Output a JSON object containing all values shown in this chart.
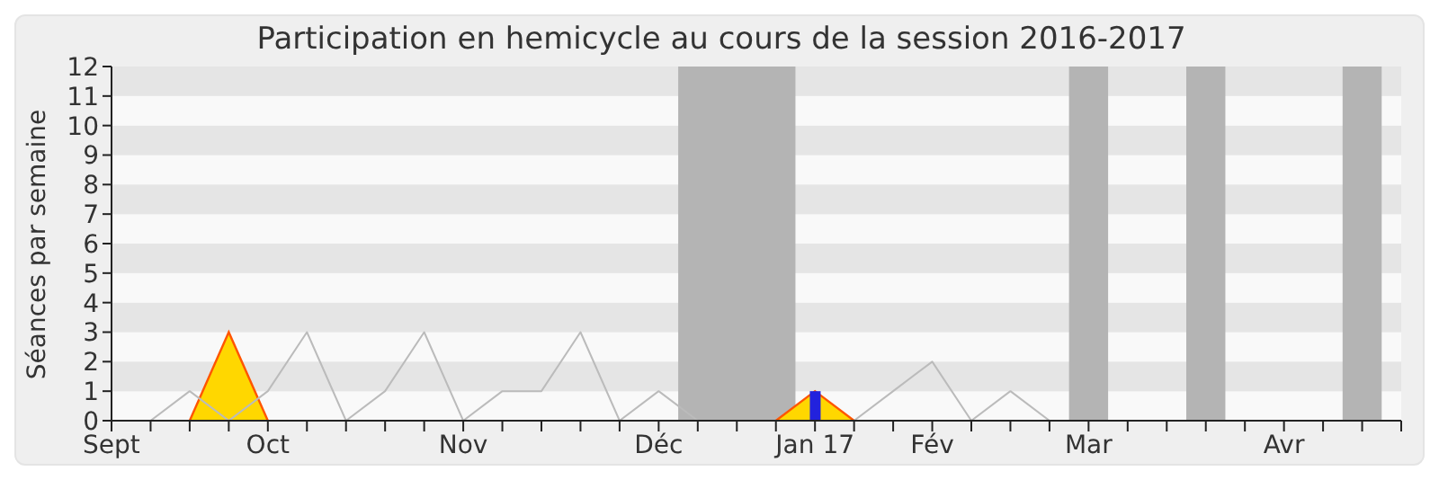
{
  "chart_data": {
    "type": "line",
    "title": "Participation en hemicycle au cours de la session 2016-2017",
    "ylabel": "Séances par semaine",
    "categories": [
      "Sept",
      null,
      null,
      null,
      "Oct",
      null,
      null,
      null,
      null,
      "Nov",
      null,
      null,
      null,
      null,
      "Déc",
      null,
      null,
      null,
      "Jan 17",
      null,
      null,
      "Fév",
      null,
      null,
      null,
      "Mar",
      null,
      null,
      null,
      null,
      "Avr",
      null,
      null,
      null
    ],
    "series": [
      {
        "color": "#bbbbbb",
        "values": [
          0,
          0,
          1,
          0,
          1,
          3,
          0,
          1,
          3,
          0,
          1,
          1,
          3,
          0,
          1,
          0,
          null,
          null,
          null,
          0,
          1,
          2,
          0,
          1,
          0,
          null,
          null,
          null,
          null,
          null,
          null,
          null,
          null,
          null
        ]
      },
      {
        "type": "area",
        "color": "#ffd700",
        "values": [
          null,
          null,
          0,
          3,
          0,
          null,
          null,
          null,
          null,
          null,
          null,
          null,
          null,
          null,
          null,
          null,
          null,
          0,
          1,
          0,
          null,
          null,
          null,
          null,
          null,
          null,
          null,
          null,
          null,
          null,
          null,
          null,
          null,
          null
        ]
      },
      {
        "type": "bar",
        "color": "#2222dd",
        "values": [
          null,
          null,
          null,
          null,
          null,
          null,
          null,
          null,
          null,
          null,
          null,
          null,
          null,
          null,
          null,
          null,
          null,
          null,
          1,
          null,
          null,
          null,
          null,
          null,
          null,
          null,
          null,
          null,
          null,
          null,
          null,
          null,
          null,
          null
        ]
      }
    ],
    "ylim": [
      0,
      12
    ],
    "yticks": [
      0,
      1,
      2,
      3,
      4,
      5,
      6,
      7,
      8,
      9,
      10,
      11,
      12
    ],
    "marker": "none"
  }
}
